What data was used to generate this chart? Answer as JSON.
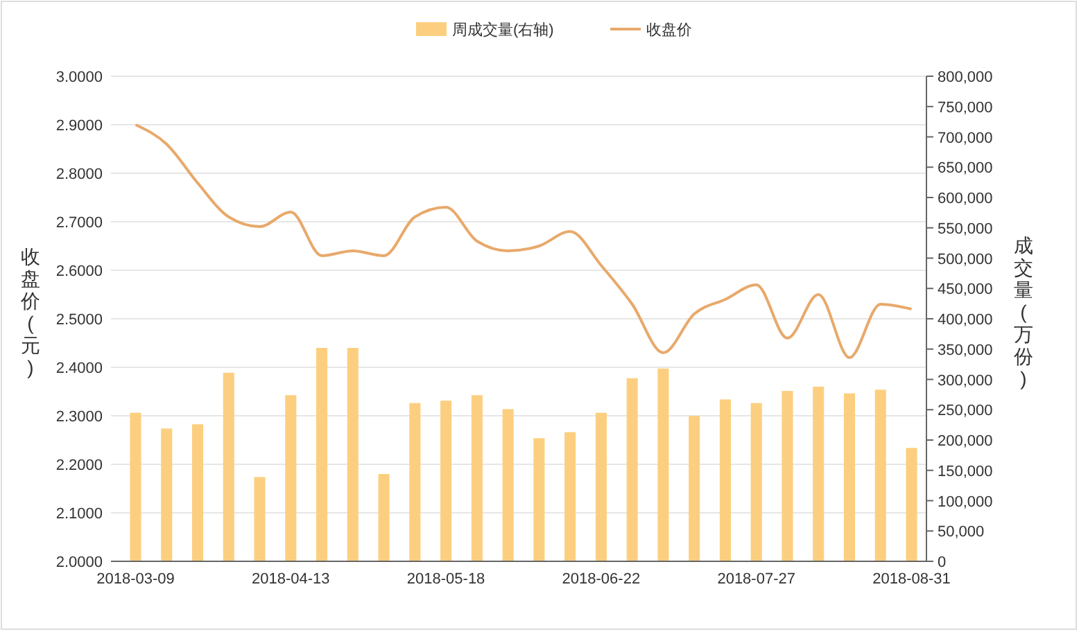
{
  "chart_data": {
    "type": "bar",
    "categories": [
      "2018-03-09",
      null,
      null,
      null,
      null,
      "2018-04-13",
      null,
      null,
      null,
      null,
      "2018-05-18",
      null,
      null,
      null,
      null,
      "2018-06-22",
      null,
      null,
      null,
      null,
      "2018-07-27",
      null,
      null,
      null,
      null,
      "2018-08-31"
    ],
    "series": [
      {
        "name": "周成交量(右轴)",
        "axis": "y2",
        "color": "#fccf80",
        "values": [
          245000,
          219000,
          226000,
          311000,
          139000,
          274000,
          352000,
          352000,
          144000,
          261000,
          265000,
          274000,
          251000,
          203000,
          213000,
          245000,
          302000,
          318000,
          240000,
          267000,
          261000,
          281000,
          288000,
          277000,
          283000,
          187000
        ]
      },
      {
        "name": "收盘价",
        "type": "line",
        "color": "#e8a96b",
        "values": [
          2.9,
          2.86,
          2.78,
          2.71,
          2.69,
          2.72,
          2.63,
          2.64,
          2.63,
          2.71,
          2.73,
          2.66,
          2.64,
          2.65,
          2.68,
          2.61,
          2.53,
          2.43,
          2.51,
          2.54,
          2.57,
          2.46,
          2.55,
          2.42,
          2.53,
          2.52
        ]
      }
    ],
    "ylabel": "收盘价(元)",
    "y2label": "成交量(万份)",
    "ylim": [
      2,
      3
    ],
    "yticks": [
      {
        "value": 2,
        "label": "2.0000"
      },
      {
        "value": 2.1,
        "label": "2.1000"
      },
      {
        "value": 2.2,
        "label": "2.2000"
      },
      {
        "value": 2.3,
        "label": "2.3000"
      },
      {
        "value": 2.4,
        "label": "2.4000"
      },
      {
        "value": 2.5,
        "label": "2.5000"
      },
      {
        "value": 2.6,
        "label": "2.6000"
      },
      {
        "value": 2.7,
        "label": "2.7000"
      },
      {
        "value": 2.8,
        "label": "2.8000"
      },
      {
        "value": 2.9,
        "label": "2.9000"
      },
      {
        "value": 3,
        "label": "3.0000"
      }
    ],
    "y2lim": [
      0,
      800000
    ],
    "y2ticks": [
      0,
      {
        "value": 50000,
        "label": "50,000"
      },
      {
        "value": 100000,
        "label": "100,000"
      },
      {
        "value": 150000,
        "label": "150,000"
      },
      {
        "value": 200000,
        "label": "200,000"
      },
      {
        "value": 250000,
        "label": "250,000"
      },
      {
        "value": 300000,
        "label": "300,000"
      },
      {
        "value": 350000,
        "label": "350,000"
      },
      {
        "value": 400000,
        "label": "400,000"
      },
      {
        "value": 450000,
        "label": "450,000"
      },
      {
        "value": 500000,
        "label": "500,000"
      },
      {
        "value": 550000,
        "label": "550,000"
      },
      {
        "value": 600000,
        "label": "600,000"
      },
      {
        "value": 650000,
        "label": "650,000"
      },
      {
        "value": 700000,
        "label": "700,000"
      },
      {
        "value": 750000,
        "label": "750,000"
      },
      {
        "value": 800000,
        "label": "800,000"
      }
    ],
    "grid": "y",
    "legend": "top",
    "marker": "none",
    "line_style": "solid"
  }
}
